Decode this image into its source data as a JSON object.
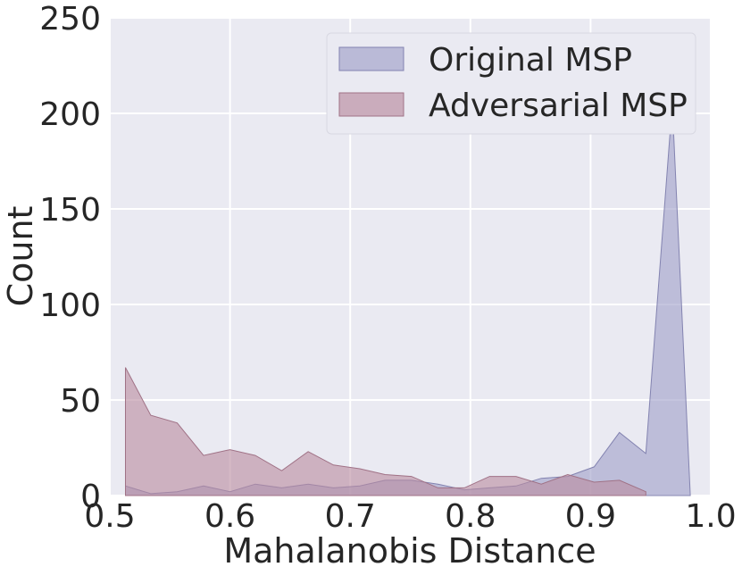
{
  "chart_data": {
    "type": "area",
    "xlabel": "Mahalanobis Distance",
    "ylabel": "Count",
    "xlim": [
      0.5,
      1.0
    ],
    "ylim": [
      0,
      250
    ],
    "x_ticks": [
      "0.5",
      "0.6",
      "0.7",
      "0.8",
      "0.9",
      "1.0"
    ],
    "y_ticks": [
      "0",
      "50",
      "100",
      "150",
      "200",
      "250"
    ],
    "grid": true,
    "legend_position": "top-right",
    "colors": {
      "background": "#eaeaf2",
      "grid": "#ffffff",
      "original": "#9f9fc8",
      "adversarial": "#b98a9e",
      "text": "#262626"
    },
    "series": [
      {
        "name": "Original MSP",
        "x": [
          0.513,
          0.534,
          0.556,
          0.578,
          0.6,
          0.621,
          0.643,
          0.665,
          0.686,
          0.708,
          0.729,
          0.751,
          0.773,
          0.795,
          0.816,
          0.838,
          0.859,
          0.881,
          0.903,
          0.924,
          0.946,
          0.968,
          0.983
        ],
        "values": [
          5,
          1,
          2,
          5,
          2,
          6,
          4,
          6,
          4,
          5,
          8,
          8,
          6,
          3,
          4,
          5,
          9,
          10,
          15,
          33,
          22,
          205,
          0
        ]
      },
      {
        "name": "Adversarial MSP",
        "x": [
          0.513,
          0.534,
          0.556,
          0.578,
          0.6,
          0.621,
          0.643,
          0.665,
          0.686,
          0.708,
          0.729,
          0.751,
          0.773,
          0.795,
          0.816,
          0.838,
          0.859,
          0.881,
          0.903,
          0.924,
          0.946
        ],
        "values": [
          67,
          42,
          38,
          21,
          24,
          21,
          13,
          23,
          16,
          14,
          11,
          10,
          4,
          4,
          10,
          10,
          6,
          11,
          7,
          8,
          2
        ]
      }
    ]
  }
}
